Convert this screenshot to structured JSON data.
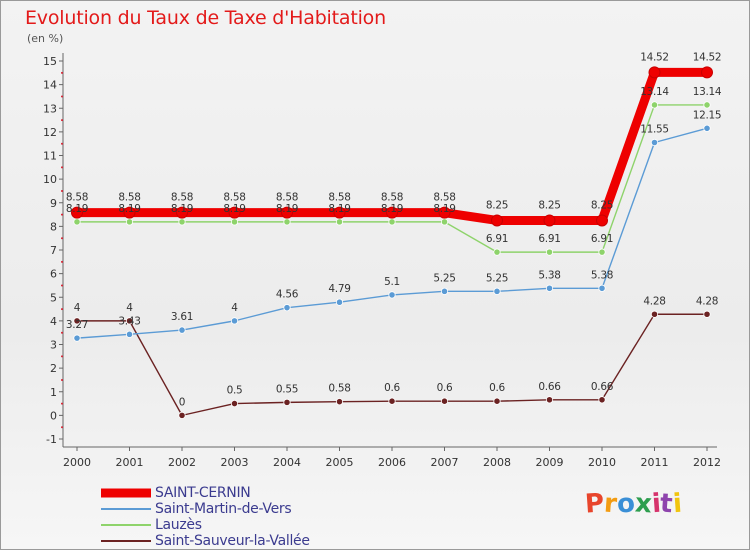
{
  "header": {
    "title": "Evolution du Taux de Taxe d'Habitation",
    "subtitle": "(en %)"
  },
  "brand": {
    "text": "Proxiti",
    "colors": [
      "#e8452c",
      "#f39c12",
      "#3a8fd6",
      "#2e9e4f",
      "#d6336c",
      "#8e44ad",
      "#f1c40f"
    ]
  },
  "chart_data": {
    "type": "line",
    "x": [
      "2000",
      "2001",
      "2002",
      "2003",
      "2004",
      "2005",
      "2006",
      "2007",
      "2008",
      "2009",
      "2010",
      "2011",
      "2012"
    ],
    "ylim": [
      -1,
      15
    ],
    "yticks": [
      "-1",
      "0",
      "1",
      "2",
      "3",
      "4",
      "5",
      "6",
      "7",
      "8",
      "9",
      "10",
      "11",
      "12",
      "13",
      "14",
      "15"
    ],
    "grid": false,
    "legend_position": "bottom-left",
    "series": [
      {
        "name": "SAINT-CERNIN",
        "color": "#ee0000",
        "values": [
          8.58,
          8.58,
          8.58,
          8.58,
          8.58,
          8.58,
          8.58,
          8.58,
          8.25,
          8.25,
          8.25,
          14.52,
          14.52
        ],
        "labels": [
          "8.58",
          "8.58",
          "8.58",
          "8.58",
          "8.58",
          "8.58",
          "8.58",
          "8.58",
          "8.25",
          "8.25",
          "8.25",
          "14.52",
          "14.52"
        ]
      },
      {
        "name": "Saint-Martin-de-Vers",
        "color": "#5b9bd5",
        "values": [
          3.27,
          3.43,
          3.61,
          4,
          4.56,
          4.79,
          5.1,
          5.25,
          5.25,
          5.38,
          5.38,
          11.55,
          12.15
        ],
        "labels": [
          "3.27",
          "3.43",
          "3.61",
          "4",
          "4.56",
          "4.79",
          "5.1",
          "5.25",
          "5.25",
          "5.38",
          "5.38",
          "11.55",
          "12.15"
        ]
      },
      {
        "name": "Lauzès",
        "color": "#8ed36b",
        "values": [
          8.19,
          8.19,
          8.19,
          8.19,
          8.19,
          8.19,
          8.19,
          8.19,
          6.91,
          6.91,
          6.91,
          13.14,
          13.14
        ],
        "labels": [
          "8.19",
          "8.19",
          "8.19",
          "8.19",
          "8.19",
          "8.19",
          "8.19",
          "8.19",
          "6.91",
          "6.91",
          "6.91",
          "13.14",
          "13.14"
        ]
      },
      {
        "name": "Saint-Sauveur-la-Vallée",
        "color": "#6b2222",
        "values": [
          4,
          4,
          0,
          0.5,
          0.55,
          0.58,
          0.6,
          0.6,
          0.6,
          0.66,
          0.66,
          4.28,
          4.28
        ],
        "labels": [
          "4",
          "4",
          "0",
          "0.5",
          "0.55",
          "0.58",
          "0.6",
          "0.6",
          "0.6",
          "0.66",
          "0.66",
          "4.28",
          "4.28"
        ]
      }
    ]
  }
}
